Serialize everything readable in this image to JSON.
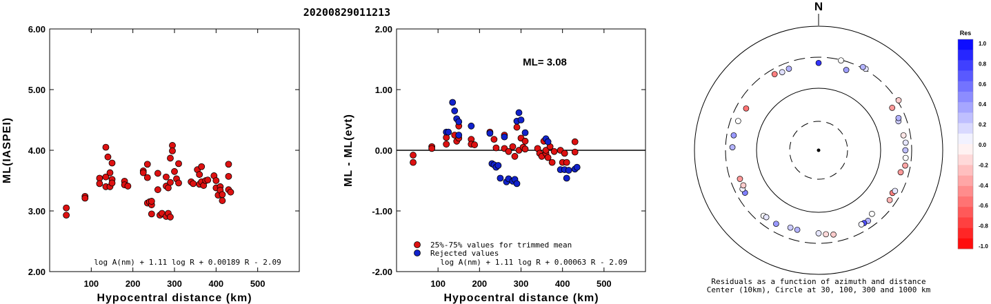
{
  "title": "20200829011213",
  "chart_data": [
    {
      "type": "scatter",
      "xlabel": "Hypocentral distance (km)",
      "ylabel": "ML(IASPEI)",
      "xlim": [
        0,
        600
      ],
      "ylim": [
        2.0,
        6.0
      ],
      "xticks": [
        "100",
        "200",
        "300",
        "400",
        "500"
      ],
      "yticks": [
        "2.00",
        "3.00",
        "4.00",
        "5.00",
        "6.00"
      ],
      "formula": "log A(nm) + 1.11 log R + 0.00189 R - 2.09",
      "marker_color": "#dd1111",
      "points": [
        [
          40,
          3.05
        ],
        [
          40,
          2.93
        ],
        [
          85,
          3.24
        ],
        [
          85,
          3.21
        ],
        [
          120,
          3.54
        ],
        [
          120,
          3.45
        ],
        [
          135,
          4.05
        ],
        [
          135,
          3.56
        ],
        [
          135,
          3.4
        ],
        [
          140,
          3.89
        ],
        [
          145,
          3.63
        ],
        [
          145,
          3.4
        ],
        [
          150,
          3.79
        ],
        [
          150,
          3.52
        ],
        [
          150,
          3.46
        ],
        [
          180,
          3.49
        ],
        [
          180,
          3.43
        ],
        [
          188,
          3.41
        ],
        [
          225,
          3.66
        ],
        [
          225,
          3.63
        ],
        [
          235,
          3.77
        ],
        [
          235,
          3.55
        ],
        [
          235,
          3.13
        ],
        [
          240,
          3.15
        ],
        [
          245,
          3.1
        ],
        [
          245,
          3.16
        ],
        [
          245,
          2.95
        ],
        [
          260,
          3.62
        ],
        [
          260,
          3.35
        ],
        [
          265,
          2.93
        ],
        [
          270,
          2.96
        ],
        [
          280,
          2.91
        ],
        [
          280,
          3.56
        ],
        [
          280,
          3.41
        ],
        [
          285,
          3.38
        ],
        [
          285,
          2.96
        ],
        [
          290,
          2.9
        ],
        [
          290,
          3.87
        ],
        [
          290,
          3.47
        ],
        [
          295,
          4.08
        ],
        [
          295,
          3.99
        ],
        [
          300,
          3.65
        ],
        [
          305,
          3.53
        ],
        [
          310,
          3.78
        ],
        [
          310,
          3.46
        ],
        [
          340,
          3.48
        ],
        [
          345,
          3.45
        ],
        [
          355,
          3.68
        ],
        [
          360,
          3.44
        ],
        [
          360,
          3.6
        ],
        [
          365,
          3.73
        ],
        [
          365,
          3.48
        ],
        [
          370,
          3.42
        ],
        [
          375,
          3.5
        ],
        [
          380,
          3.51
        ],
        [
          395,
          3.58
        ],
        [
          400,
          3.5
        ],
        [
          400,
          3.38
        ],
        [
          405,
          3.26
        ],
        [
          410,
          3.4
        ],
        [
          410,
          3.34
        ],
        [
          415,
          3.17
        ],
        [
          415,
          3.27
        ],
        [
          430,
          3.77
        ],
        [
          430,
          3.57
        ],
        [
          430,
          3.35
        ],
        [
          435,
          3.31
        ]
      ]
    },
    {
      "type": "scatter",
      "xlabel": "Hypocentral distance (km)",
      "ylabel": "ML - ML(evt)",
      "xlim": [
        0,
        600
      ],
      "ylim": [
        -2.0,
        2.0
      ],
      "xticks": [
        "100",
        "200",
        "300",
        "400",
        "500"
      ],
      "yticks": [
        "-2.00",
        "-1.00",
        "0.00",
        "1.00",
        "2.00"
      ],
      "annotation": "ML= 3.08",
      "formula": "log A(nm) + 1.11 log R + 0.00063 R - 2.09",
      "legend_position": "bottom-left",
      "series": [
        {
          "name": "25%-75% values for trimmed mean",
          "color": "#dd1111",
          "points": [
            [
              40,
              -0.08
            ],
            [
              40,
              -0.2
            ],
            [
              85,
              0.06
            ],
            [
              85,
              0.03
            ],
            [
              120,
              0.21
            ],
            [
              120,
              0.1
            ],
            [
              140,
              0.25
            ],
            [
              145,
              0.15
            ],
            [
              150,
              0.4
            ],
            [
              150,
              0.2
            ],
            [
              180,
              0.18
            ],
            [
              180,
              0.1
            ],
            [
              188,
              0.09
            ],
            [
              225,
              0.3
            ],
            [
              235,
              0.18
            ],
            [
              240,
              0.04
            ],
            [
              260,
              0.25
            ],
            [
              260,
              0.03
            ],
            [
              270,
              -0.02
            ],
            [
              280,
              0.06
            ],
            [
              285,
              -0.1
            ],
            [
              290,
              0.38
            ],
            [
              295,
              0.0
            ],
            [
              300,
              0.2
            ],
            [
              305,
              0.05
            ],
            [
              310,
              0.15
            ],
            [
              310,
              0.02
            ],
            [
              340,
              0.03
            ],
            [
              345,
              -0.05
            ],
            [
              350,
              -0.1
            ],
            [
              355,
              0.15
            ],
            [
              360,
              -0.05
            ],
            [
              360,
              0.0
            ],
            [
              365,
              -0.12
            ],
            [
              370,
              0.06
            ],
            [
              375,
              -0.2
            ],
            [
              380,
              -0.02
            ],
            [
              395,
              0.0
            ],
            [
              400,
              -0.2
            ],
            [
              405,
              -0.05
            ],
            [
              410,
              -0.2
            ],
            [
              430,
              0.14
            ],
            [
              430,
              -0.03
            ]
          ]
        },
        {
          "name": "Rejected values",
          "color": "#1122cc",
          "points": [
            [
              120,
              0.3
            ],
            [
              125,
              0.3
            ],
            [
              135,
              0.79
            ],
            [
              140,
              0.65
            ],
            [
              145,
              0.52
            ],
            [
              150,
              0.25
            ],
            [
              150,
              0.47
            ],
            [
              180,
              0.4
            ],
            [
              225,
              0.28
            ],
            [
              230,
              -0.22
            ],
            [
              235,
              -0.24
            ],
            [
              240,
              -0.28
            ],
            [
              245,
              -0.25
            ],
            [
              250,
              -0.46
            ],
            [
              260,
              0.22
            ],
            [
              265,
              -0.52
            ],
            [
              270,
              -0.47
            ],
            [
              280,
              -0.51
            ],
            [
              285,
              -0.48
            ],
            [
              290,
              -0.55
            ],
            [
              290,
              0.48
            ],
            [
              295,
              0.62
            ],
            [
              300,
              0.5
            ],
            [
              310,
              0.29
            ],
            [
              360,
              0.19
            ],
            [
              365,
              0.14
            ],
            [
              395,
              -0.32
            ],
            [
              405,
              -0.32
            ],
            [
              410,
              -0.46
            ],
            [
              415,
              -0.33
            ],
            [
              430,
              -0.31
            ],
            [
              435,
              -0.28
            ]
          ]
        }
      ]
    },
    {
      "type": "polar-scatter",
      "north_label": "N",
      "caption_line1": "Residuals as a function of azimuth and distance",
      "caption_line2": "Center (10km), Circle at 30, 100, 300 and 1000 km",
      "colorbar_title": "Res",
      "colorbar_labels": [
        "1.0",
        "0.8",
        "0.6",
        "0.4",
        "0.2",
        "0.0",
        "-0.2",
        "-0.4",
        "-0.6",
        "-0.8",
        "-1.0"
      ],
      "points": [
        [
          14,
          295,
          0.0
        ],
        [
          19,
          225,
          0.38
        ],
        [
          58,
          315,
          -0.2
        ],
        [
          30,
          312,
          0.1
        ],
        [
          28,
          315,
          0.3
        ],
        [
          330,
          250,
          -0.5
        ],
        [
          340,
          240,
          0.3
        ],
        [
          335,
          235,
          0.12
        ],
        [
          0,
          245,
          0.8
        ],
        [
          300,
          215,
          -0.55
        ],
        [
          290,
          230,
          0.0
        ],
        [
          280,
          235,
          0.4
        ],
        [
          272,
          235,
          0.3
        ],
        [
          250,
          215,
          -0.4
        ],
        [
          240,
          225,
          0.5
        ],
        [
          243,
          228,
          0.05
        ],
        [
          245,
          210,
          -0.2
        ],
        [
          220,
          230,
          0.0
        ],
        [
          218,
          225,
          0.1
        ],
        [
          210,
          225,
          0.4
        ],
        [
          200,
          205,
          0.2
        ],
        [
          195,
          205,
          0.3
        ],
        [
          180,
          210,
          0.1
        ],
        [
          175,
          220,
          -0.15
        ],
        [
          170,
          230,
          -0.2
        ],
        [
          145,
          235,
          0.3
        ],
        [
          148,
          232,
          0.7
        ],
        [
          150,
          230,
          0.05
        ],
        [
          140,
          210,
          0.0
        ],
        [
          125,
          240,
          -0.3
        ],
        [
          120,
          228,
          -0.5
        ],
        [
          118,
          238,
          0.1
        ],
        [
          105,
          225,
          -0.4
        ],
        [
          100,
          250,
          -0.35
        ],
        [
          95,
          245,
          0.0
        ],
        [
          90,
          240,
          0.25
        ],
        [
          85,
          245,
          0.1
        ],
        [
          80,
          235,
          -0.1
        ],
        [
          70,
          225,
          0.2
        ],
        [
          68,
          235,
          0.3
        ],
        [
          60,
          225,
          -0.4
        ]
      ]
    }
  ]
}
